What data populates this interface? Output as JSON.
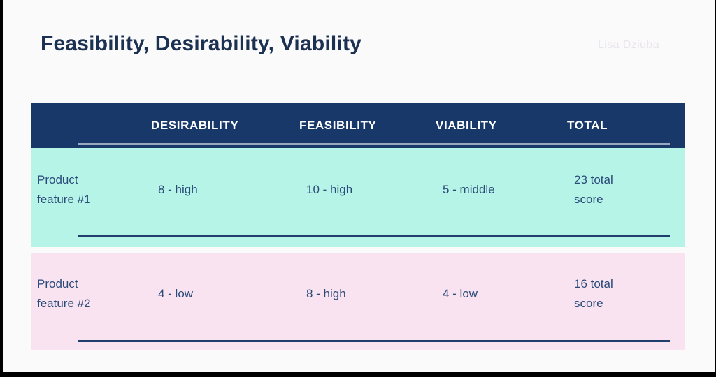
{
  "slide": {
    "title": "Feasibility, Desirability, Viability",
    "watermark": "Lisa Dziuba"
  },
  "table": {
    "headers": [
      "DESIRABILITY",
      "FEASIBILITY",
      "VIABILITY",
      "TOTAL"
    ],
    "rows": [
      {
        "label": "Product feature #1",
        "desirability": "8 - high",
        "feasibility": "10 - high",
        "viability": "5 - middle",
        "total": "23 total score"
      },
      {
        "label": "Product feature #2",
        "desirability": "4 - low",
        "feasibility": "8 - high",
        "viability": "4 - low",
        "total": "16 total score"
      }
    ]
  },
  "colors": {
    "page_bg": "#fafafa",
    "frame": "#000000",
    "title_text": "#1c3152",
    "watermark_text": "#e9e4ec",
    "header_bg": "#18386a",
    "header_text": "#ffffff",
    "body_text": "#2a4a78",
    "row1_bg": "#b6f4e8",
    "row2_bg": "#f9e3f0",
    "divider_navy": "#1f3e6d",
    "divider_light": "#b8c4d4"
  }
}
